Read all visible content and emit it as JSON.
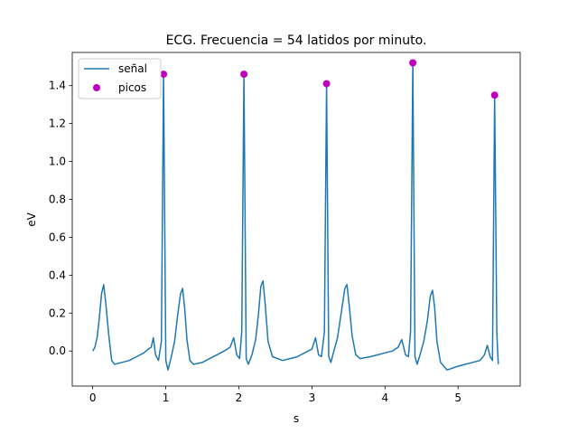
{
  "chart_data": {
    "type": "line",
    "title": "ECG. Frecuencia = 54 latidos por minuto.",
    "xlabel": "s",
    "ylabel": "eV",
    "xlim": [
      -0.28,
      5.85
    ],
    "ylim": [
      -0.185,
      1.575
    ],
    "xticks": [
      0,
      1,
      2,
      3,
      4,
      5
    ],
    "yticks": [
      0.0,
      0.2,
      0.4,
      0.6,
      0.8,
      1.0,
      1.2,
      1.4
    ],
    "ytick_labels": [
      "0.0",
      "0.2",
      "0.4",
      "0.6",
      "0.8",
      "1.0",
      "1.2",
      "1.4"
    ],
    "grid": false,
    "legend_position": "top-left",
    "series": [
      {
        "name": "señal",
        "color": "#1f77b4",
        "x": [
          0.0,
          0.03,
          0.06,
          0.09,
          0.12,
          0.15,
          0.18,
          0.22,
          0.26,
          0.3,
          0.4,
          0.5,
          0.6,
          0.7,
          0.76,
          0.8,
          0.83,
          0.86,
          0.9,
          0.94,
          0.97,
          1.0,
          1.03,
          1.07,
          1.12,
          1.16,
          1.2,
          1.23,
          1.26,
          1.29,
          1.33,
          1.38,
          1.5,
          1.6,
          1.7,
          1.8,
          1.88,
          1.93,
          1.97,
          2.01,
          2.04,
          2.07,
          2.1,
          2.13,
          2.18,
          2.23,
          2.27,
          2.3,
          2.33,
          2.36,
          2.4,
          2.46,
          2.6,
          2.7,
          2.8,
          2.9,
          3.0,
          3.05,
          3.09,
          3.13,
          3.17,
          3.2,
          3.23,
          3.26,
          3.3,
          3.35,
          3.4,
          3.45,
          3.48,
          3.51,
          3.55,
          3.6,
          3.66,
          3.8,
          3.9,
          4.0,
          4.1,
          4.18,
          4.23,
          4.28,
          4.32,
          4.35,
          4.38,
          4.41,
          4.44,
          4.48,
          4.53,
          4.58,
          4.62,
          4.65,
          4.68,
          4.71,
          4.76,
          4.85,
          5.0,
          5.1,
          5.2,
          5.3,
          5.36,
          5.4,
          5.44,
          5.47,
          5.5,
          5.53,
          5.55
        ],
        "y": [
          0.0,
          0.02,
          0.07,
          0.17,
          0.3,
          0.35,
          0.25,
          0.08,
          -0.05,
          -0.07,
          -0.06,
          -0.05,
          -0.03,
          -0.01,
          0.01,
          0.02,
          0.07,
          -0.02,
          -0.05,
          0.05,
          1.46,
          -0.05,
          -0.1,
          -0.04,
          0.05,
          0.18,
          0.3,
          0.33,
          0.22,
          0.06,
          -0.05,
          -0.07,
          -0.06,
          -0.04,
          -0.02,
          0.0,
          0.02,
          0.07,
          -0.02,
          -0.04,
          0.1,
          1.46,
          -0.04,
          -0.07,
          -0.02,
          0.06,
          0.2,
          0.34,
          0.37,
          0.25,
          0.05,
          -0.03,
          -0.05,
          -0.04,
          -0.03,
          -0.01,
          0.01,
          0.07,
          -0.02,
          -0.03,
          0.1,
          1.41,
          -0.03,
          -0.06,
          0.0,
          0.07,
          0.2,
          0.33,
          0.35,
          0.24,
          0.08,
          -0.02,
          -0.04,
          -0.03,
          -0.02,
          -0.01,
          0.0,
          0.02,
          0.06,
          -0.02,
          -0.03,
          0.1,
          1.52,
          -0.03,
          -0.07,
          -0.02,
          0.05,
          0.16,
          0.29,
          0.32,
          0.23,
          0.05,
          -0.06,
          -0.1,
          -0.08,
          -0.07,
          -0.06,
          -0.05,
          -0.02,
          0.03,
          -0.03,
          -0.05,
          1.35,
          0.1,
          -0.07
        ]
      },
      {
        "name": "picos",
        "color": "#bf00bf",
        "x": [
          0.97,
          2.07,
          3.2,
          4.38,
          5.5
        ],
        "y": [
          1.46,
          1.46,
          1.41,
          1.52,
          1.35
        ]
      }
    ]
  }
}
